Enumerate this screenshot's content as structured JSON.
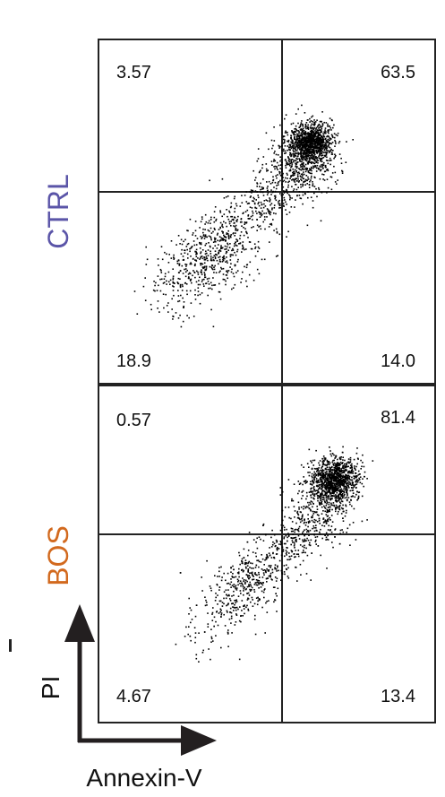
{
  "chart_data": [
    {
      "type": "scatter",
      "panel_label": "CTRL",
      "label_color": "#5b55a8",
      "quadrants": {
        "top_left": "3.57",
        "top_right": "63.5",
        "bottom_left": "18.9",
        "bottom_right": "14.0"
      },
      "xlabel": "Annexin-V",
      "ylabel": "PI"
    },
    {
      "type": "scatter",
      "panel_label": "BOS",
      "label_color": "#d2691e",
      "quadrants": {
        "top_left": "0.57",
        "top_right": "81.4",
        "bottom_left": "4.67",
        "bottom_right": "13.4"
      },
      "xlabel": "Annexin-V",
      "ylabel": "PI"
    }
  ],
  "axes": {
    "x_label": "Annexin-V",
    "y_label": "PI"
  },
  "colors": {
    "dots": "#000000",
    "frame": "#222222"
  }
}
